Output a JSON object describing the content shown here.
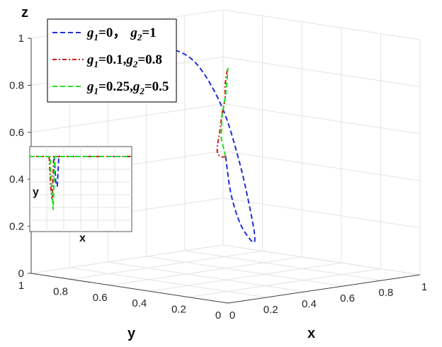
{
  "chart_data": {
    "type": "line",
    "title": "",
    "axes": {
      "z": {
        "label": "z",
        "ticks": [
          "0",
          "0.2",
          "0.4",
          "0.6",
          "0.8",
          "1"
        ],
        "range": [
          0,
          1
        ]
      },
      "x": {
        "label": "x",
        "ticks": [
          "0",
          "0.2",
          "0.4",
          "0.6",
          "0.8",
          "1"
        ],
        "range": [
          0,
          1
        ]
      },
      "y": {
        "label": "y",
        "ticks": [
          "0",
          "0.2",
          "0.4",
          "0.6",
          "0.8",
          "1"
        ],
        "range": [
          0,
          1
        ]
      }
    },
    "grid": true,
    "legend_position": "top-left",
    "series": [
      {
        "legend": {
          "g1": "=0，",
          "g2": "=1"
        },
        "color": "#1f2fd6",
        "style": "dashed",
        "points": [
          [
            0.5,
            0.5,
            0.5
          ],
          [
            0.6,
            0.57,
            0.32
          ],
          [
            0.72,
            0.64,
            0.17
          ],
          [
            0.86,
            0.72,
            0.07
          ],
          [
            0.95,
            0.79,
            0.06
          ],
          [
            0.98,
            0.84,
            0.16
          ],
          [
            0.95,
            0.87,
            0.38
          ],
          [
            0.87,
            0.88,
            0.62
          ],
          [
            0.72,
            0.86,
            0.82
          ],
          [
            0.55,
            0.82,
            0.91
          ],
          [
            0.35,
            0.76,
            0.95
          ],
          [
            0.18,
            0.7,
            0.97
          ]
        ]
      },
      {
        "legend": {
          "g1": "=0.1,",
          "g2": "=0.8"
        },
        "color": "#d11a1a",
        "style": "dash-dot",
        "points": [
          [
            0.5,
            0.5,
            0.5
          ],
          [
            0.4,
            0.42,
            0.52
          ],
          [
            0.3,
            0.34,
            0.55
          ],
          [
            0.2,
            0.25,
            0.59
          ],
          [
            0.12,
            0.17,
            0.64
          ],
          [
            0.07,
            0.11,
            0.71
          ],
          [
            0.04,
            0.07,
            0.79
          ],
          [
            0.025,
            0.04,
            0.86
          ],
          [
            0.015,
            0.03,
            0.92
          ],
          [
            0.008,
            0.015,
            0.97
          ],
          [
            0.004,
            0.008,
            0.99
          ],
          [
            0,
            0,
            1
          ]
        ]
      },
      {
        "legend": {
          "g1": "=0.25,",
          "g2": "=0.5"
        },
        "color": "#22dd22",
        "style": "dashed",
        "points": [
          [
            0.5,
            0.5,
            0.5
          ],
          [
            0.4,
            0.41,
            0.55
          ],
          [
            0.3,
            0.32,
            0.6
          ],
          [
            0.2,
            0.23,
            0.65
          ],
          [
            0.12,
            0.15,
            0.71
          ],
          [
            0.07,
            0.1,
            0.77
          ],
          [
            0.04,
            0.06,
            0.83
          ],
          [
            0.025,
            0.035,
            0.89
          ],
          [
            0.015,
            0.02,
            0.94
          ],
          [
            0.008,
            0.01,
            0.98
          ],
          [
            0.003,
            0.004,
            0.995
          ],
          [
            0,
            0,
            1
          ]
        ]
      }
    ],
    "inset": {
      "xlabel": "x",
      "ylabel": "y",
      "series": [
        {
          "color": "#1f2fd6",
          "style": "dashed",
          "x": [
            0,
            0.24,
            0.255,
            0.27,
            0.285,
            0.3,
            1
          ],
          "y": [
            1,
            1,
            0.62,
            0.55,
            1,
            1,
            1
          ]
        },
        {
          "color": "#d11a1a",
          "style": "dash-dot",
          "x": [
            0,
            0.19,
            0.205,
            0.22,
            0.235,
            1
          ],
          "y": [
            1,
            1,
            0.55,
            0.35,
            1,
            1
          ]
        },
        {
          "color": "#22dd22",
          "style": "dashed",
          "x": [
            0,
            0.2,
            0.215,
            0.23,
            0.245,
            1
          ],
          "y": [
            1,
            1,
            0.5,
            0.2,
            1,
            1
          ]
        }
      ]
    }
  }
}
